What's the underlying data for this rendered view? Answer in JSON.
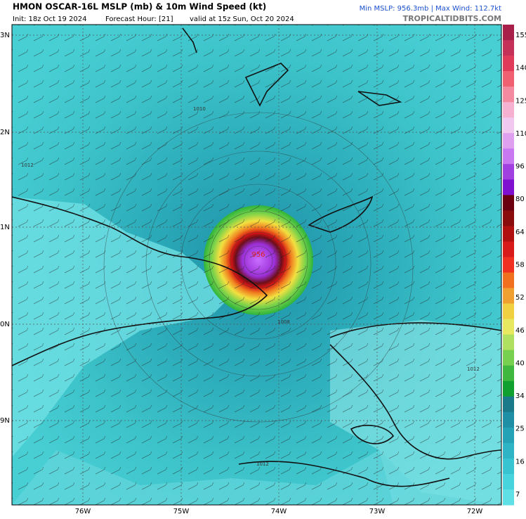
{
  "header": {
    "title": "HMON OSCAR-16L MSLP (mb) & 10m Wind Speed (kt)",
    "init": "Init: 18z Oct 19 2024",
    "forecast_hour": "Forecast Hour: [21]",
    "valid": "valid at 15z Sun, Oct 20 2024",
    "stats": "Min MSLP: 956.3mb | Max Wind: 112.7kt",
    "source": "TROPICALTIDBITS.COM"
  },
  "colorbar": {
    "labels": [
      "155",
      "140",
      "125",
      "110",
      "96",
      "80",
      "64",
      "58",
      "52",
      "46",
      "40",
      "34",
      "25",
      "16",
      "7"
    ]
  },
  "x_axis": {
    "labels": [
      "76W",
      "75W",
      "74W",
      "73W",
      "72W"
    ]
  },
  "y_axis": {
    "labels": [
      "3N",
      "2N",
      "1N",
      "0N",
      "9N"
    ]
  },
  "map_labels": {
    "center_pressure": "956",
    "isobars": [
      "1010",
      "1012",
      "1012",
      "1012",
      "1008"
    ]
  }
}
